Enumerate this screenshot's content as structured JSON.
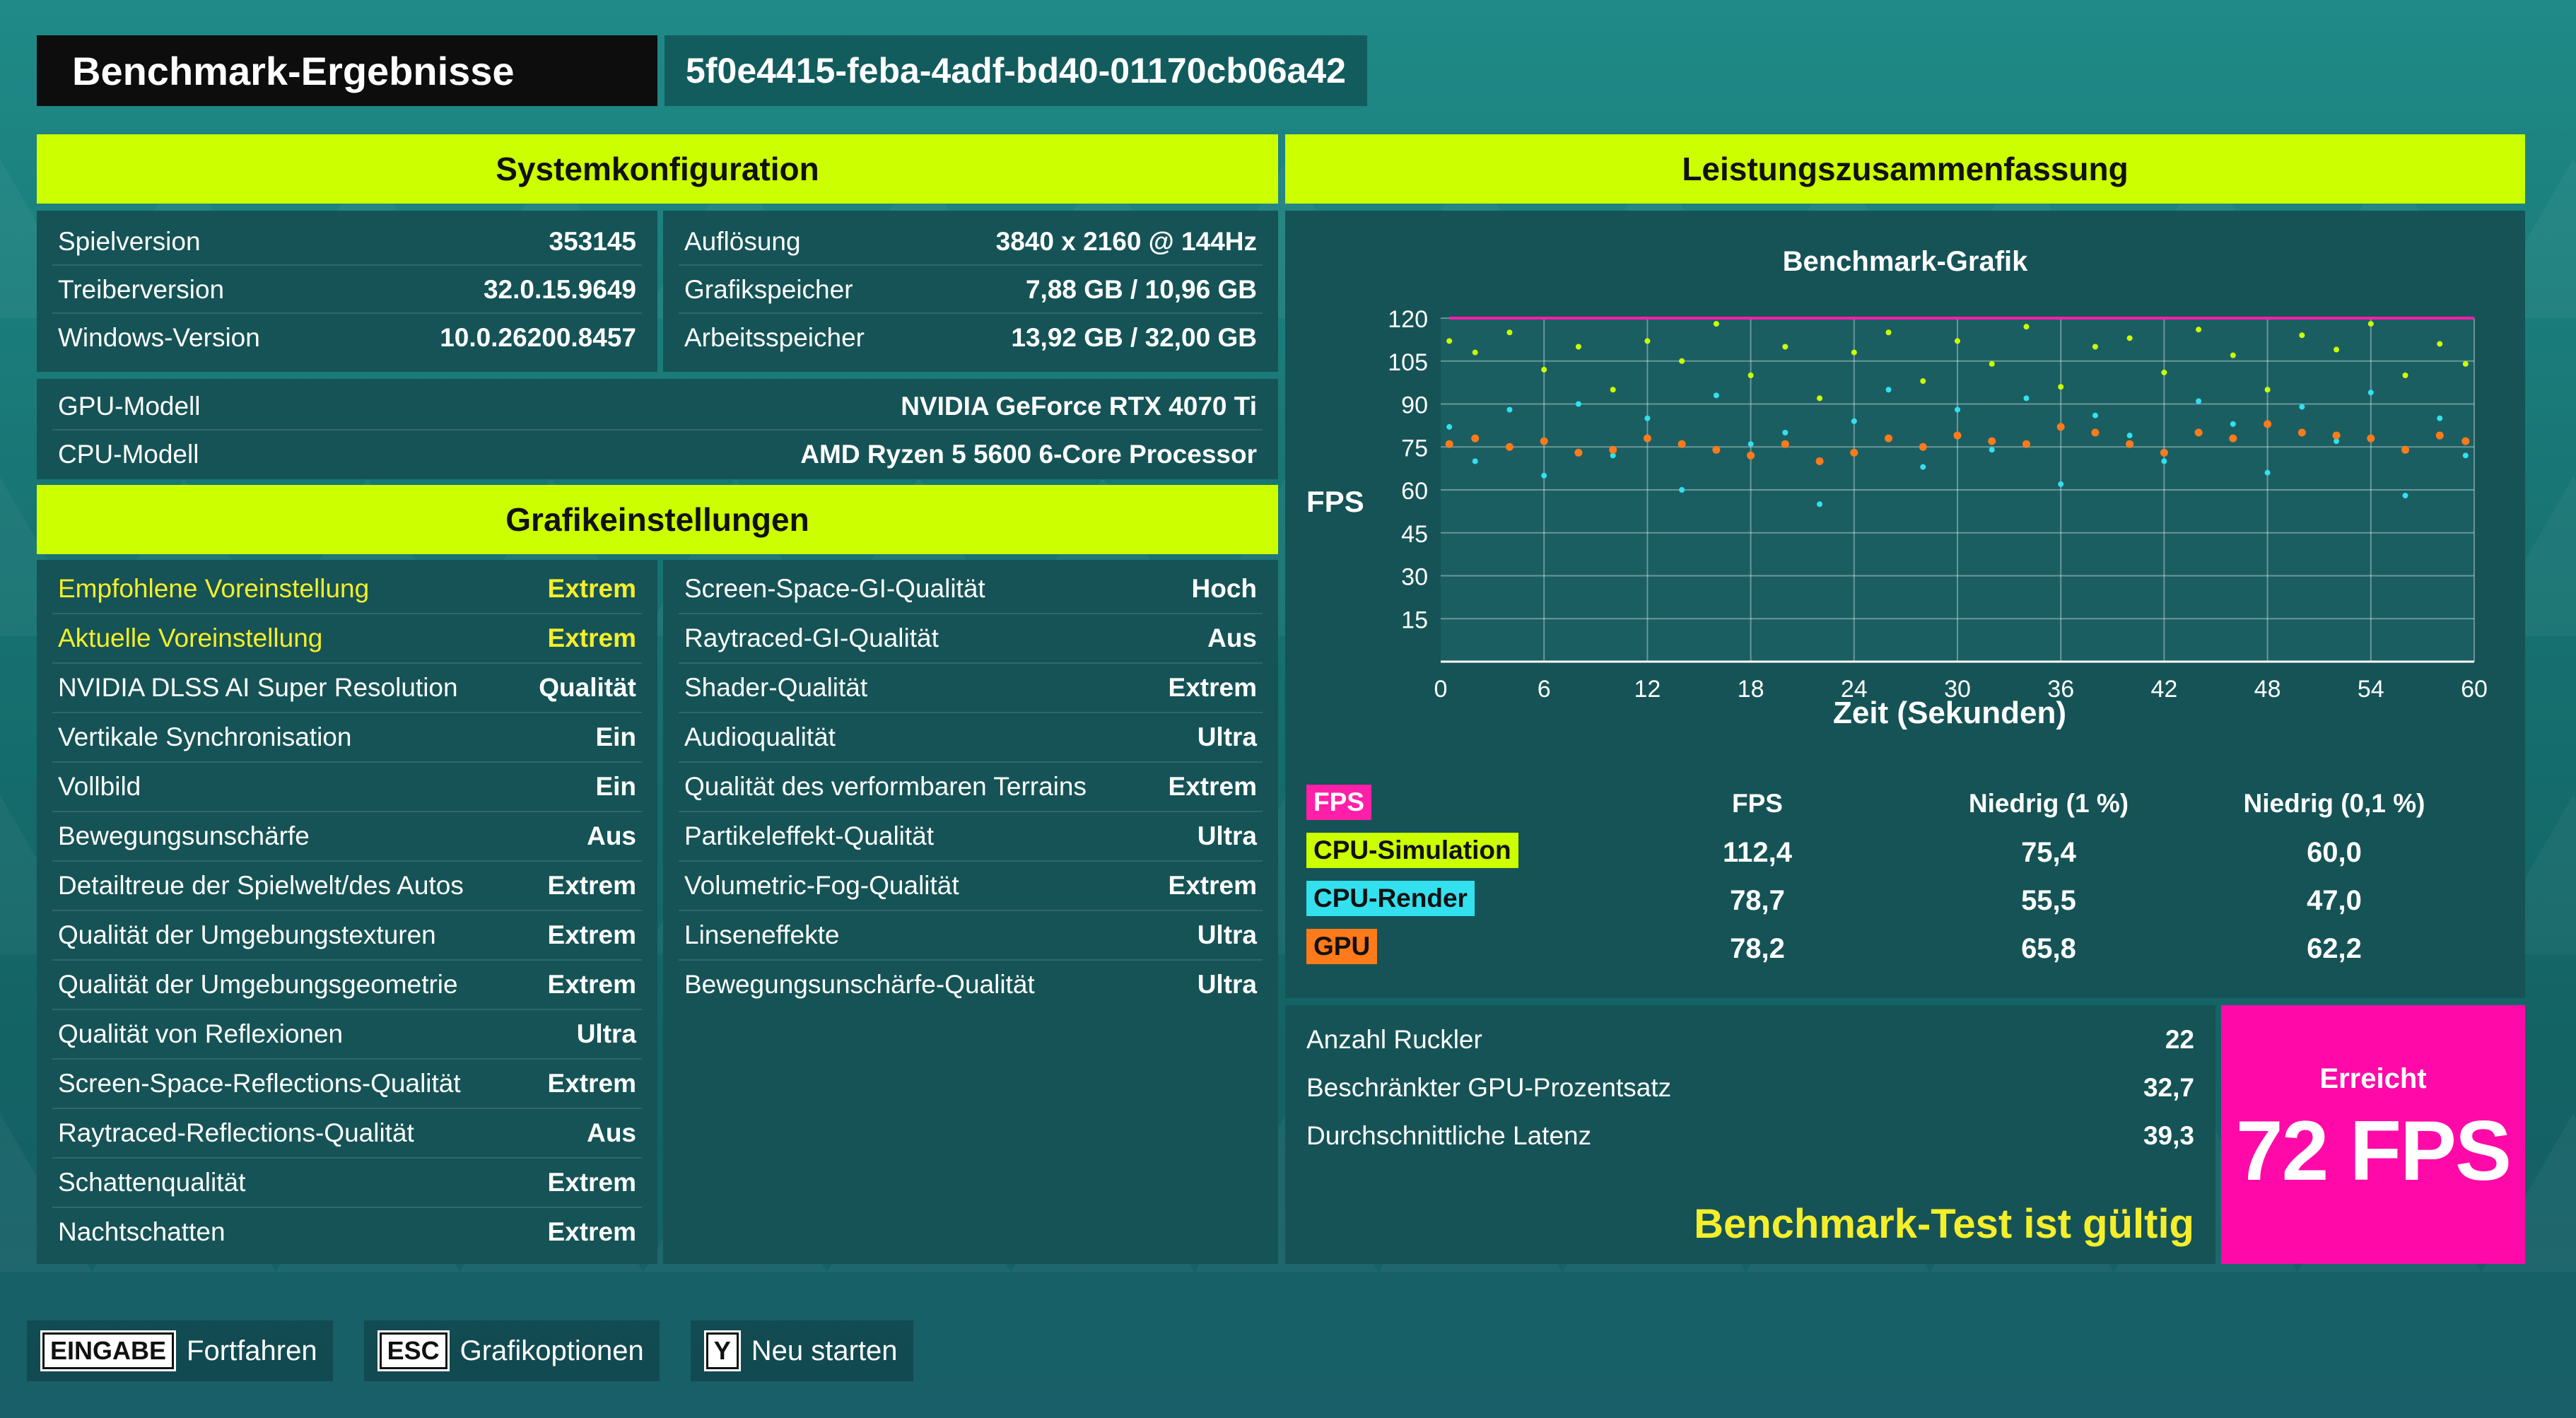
{
  "header": {
    "title": "Benchmark-Ergebnisse",
    "run_id": "5f0e4415-feba-4adf-bd40-01170cb06a42"
  },
  "system": {
    "heading": "Systemkonfiguration",
    "left": [
      {
        "label": "Spielversion",
        "value": "353145"
      },
      {
        "label": "Treiberversion",
        "value": "32.0.15.9649"
      },
      {
        "label": "Windows-Version",
        "value": "10.0.26200.8457"
      }
    ],
    "right": [
      {
        "label": "Auflösung",
        "value": "3840 x 2160 @ 144Hz"
      },
      {
        "label": "Grafikspeicher",
        "value": "7,88 GB / 10,96 GB"
      },
      {
        "label": "Arbeitsspeicher",
        "value": "13,92 GB / 32,00 GB"
      }
    ],
    "hardware": [
      {
        "label": "GPU-Modell",
        "value": "NVIDIA GeForce RTX 4070 Ti"
      },
      {
        "label": "CPU-Modell",
        "value": "AMD Ryzen 5 5600 6-Core Processor"
      }
    ]
  },
  "graphics": {
    "heading": "Grafikeinstellungen",
    "left": [
      {
        "label": "Empfohlene Voreinstellung",
        "value": "Extrem"
      },
      {
        "label": "Aktuelle Voreinstellung",
        "value": "Extrem"
      },
      {
        "label": "NVIDIA DLSS AI Super Resolution",
        "value": "Qualität"
      },
      {
        "label": "Vertikale Synchronisation",
        "value": "Ein"
      },
      {
        "label": "Vollbild",
        "value": "Ein"
      },
      {
        "label": "Bewegungsunschärfe",
        "value": "Aus"
      },
      {
        "label": "Detailtreue der Spielwelt/des Autos",
        "value": "Extrem"
      },
      {
        "label": "Qualität der Umgebungstexturen",
        "value": "Extrem"
      },
      {
        "label": "Qualität der Umgebungsgeometrie",
        "value": "Extrem"
      },
      {
        "label": "Qualität von Reflexionen",
        "value": "Ultra"
      },
      {
        "label": "Screen-Space-Reflections-Qualität",
        "value": "Extrem"
      },
      {
        "label": "Raytraced-Reflections-Qualität",
        "value": "Aus"
      },
      {
        "label": "Schattenqualität",
        "value": "Extrem"
      },
      {
        "label": "Nachtschatten",
        "value": "Extrem"
      }
    ],
    "right": [
      {
        "label": "Screen-Space-GI-Qualität",
        "value": "Hoch"
      },
      {
        "label": "Raytraced-GI-Qualität",
        "value": "Aus"
      },
      {
        "label": "Shader-Qualität",
        "value": "Extrem"
      },
      {
        "label": "Audioqualität",
        "value": "Ultra"
      },
      {
        "label": "Qualität des verformbaren Terrains",
        "value": "Extrem"
      },
      {
        "label": "Partikeleffekt-Qualität",
        "value": "Ultra"
      },
      {
        "label": "Volumetric-Fog-Qualität",
        "value": "Extrem"
      },
      {
        "label": "Linseneffekte",
        "value": "Ultra"
      },
      {
        "label": "Bewegungsunschärfe-Qualität",
        "value": "Ultra"
      }
    ]
  },
  "performance": {
    "heading": "Leistungszusammenfassung",
    "chart_title": "Benchmark-Grafik",
    "ylabel": "FPS",
    "xlabel": "Zeit (Sekunden)",
    "columns": [
      "FPS",
      "Niedrig (1 %)",
      "Niedrig (0,1 %)"
    ],
    "rows": [
      {
        "name": "CPU-Simulation",
        "color": "#ccff00",
        "values": [
          "112,4",
          "75,4",
          "60,0"
        ]
      },
      {
        "name": "CPU-Render",
        "color": "#33e0ee",
        "values": [
          "78,7",
          "55,5",
          "47,0"
        ]
      },
      {
        "name": "GPU",
        "color": "#ff7a1a",
        "values": [
          "78,2",
          "65,8",
          "62,2"
        ]
      }
    ],
    "fps_tag": {
      "name": "FPS",
      "color": "#ff1fa8"
    }
  },
  "chart_data": {
    "type": "scatter",
    "title": "Benchmark-Grafik",
    "xlabel": "Zeit (Sekunden)",
    "ylabel": "FPS",
    "xlim": [
      0,
      60
    ],
    "ylim": [
      0,
      120
    ],
    "xticks": [
      0,
      6,
      12,
      18,
      24,
      30,
      36,
      42,
      48,
      54,
      60
    ],
    "yticks": [
      15,
      30,
      45,
      60,
      75,
      90,
      105,
      120
    ],
    "grid": true,
    "series": [
      {
        "name": "FPS",
        "color": "#ff1fa8",
        "points": [
          [
            0.5,
            120
          ],
          [
            10,
            120
          ],
          [
            20,
            120
          ],
          [
            30,
            120
          ],
          [
            40,
            120
          ],
          [
            50,
            120
          ],
          [
            60,
            120
          ]
        ]
      },
      {
        "name": "CPU-Simulation",
        "color": "#ccff00",
        "points": [
          [
            0.5,
            112
          ],
          [
            2,
            108
          ],
          [
            4,
            115
          ],
          [
            6,
            102
          ],
          [
            8,
            110
          ],
          [
            10,
            95
          ],
          [
            12,
            112
          ],
          [
            14,
            105
          ],
          [
            16,
            118
          ],
          [
            18,
            100
          ],
          [
            20,
            110
          ],
          [
            22,
            92
          ],
          [
            24,
            108
          ],
          [
            26,
            115
          ],
          [
            28,
            98
          ],
          [
            30,
            112
          ],
          [
            32,
            104
          ],
          [
            34,
            117
          ],
          [
            36,
            96
          ],
          [
            38,
            110
          ],
          [
            40,
            113
          ],
          [
            42,
            101
          ],
          [
            44,
            116
          ],
          [
            46,
            107
          ],
          [
            48,
            95
          ],
          [
            50,
            114
          ],
          [
            52,
            109
          ],
          [
            54,
            118
          ],
          [
            56,
            100
          ],
          [
            58,
            111
          ],
          [
            59.5,
            104
          ]
        ]
      },
      {
        "name": "CPU-Render",
        "color": "#33e0ee",
        "points": [
          [
            0.5,
            82
          ],
          [
            2,
            70
          ],
          [
            4,
            88
          ],
          [
            6,
            65
          ],
          [
            8,
            90
          ],
          [
            10,
            72
          ],
          [
            12,
            85
          ],
          [
            14,
            60
          ],
          [
            16,
            93
          ],
          [
            18,
            76
          ],
          [
            20,
            80
          ],
          [
            22,
            55
          ],
          [
            24,
            84
          ],
          [
            26,
            95
          ],
          [
            28,
            68
          ],
          [
            30,
            88
          ],
          [
            32,
            74
          ],
          [
            34,
            92
          ],
          [
            36,
            62
          ],
          [
            38,
            86
          ],
          [
            40,
            79
          ],
          [
            42,
            70
          ],
          [
            44,
            91
          ],
          [
            46,
            83
          ],
          [
            48,
            66
          ],
          [
            50,
            89
          ],
          [
            52,
            77
          ],
          [
            54,
            94
          ],
          [
            56,
            58
          ],
          [
            58,
            85
          ],
          [
            59.5,
            72
          ]
        ]
      },
      {
        "name": "GPU",
        "color": "#ff7a1a",
        "points": [
          [
            0.5,
            76
          ],
          [
            2,
            78
          ],
          [
            4,
            75
          ],
          [
            6,
            77
          ],
          [
            8,
            73
          ],
          [
            10,
            74
          ],
          [
            12,
            78
          ],
          [
            14,
            76
          ],
          [
            16,
            74
          ],
          [
            18,
            72
          ],
          [
            20,
            76
          ],
          [
            22,
            70
          ],
          [
            24,
            73
          ],
          [
            26,
            78
          ],
          [
            28,
            75
          ],
          [
            30,
            79
          ],
          [
            32,
            77
          ],
          [
            34,
            76
          ],
          [
            36,
            82
          ],
          [
            38,
            80
          ],
          [
            40,
            76
          ],
          [
            42,
            73
          ],
          [
            44,
            80
          ],
          [
            46,
            78
          ],
          [
            48,
            83
          ],
          [
            50,
            80
          ],
          [
            52,
            79
          ],
          [
            54,
            78
          ],
          [
            56,
            74
          ],
          [
            58,
            79
          ],
          [
            59.5,
            77
          ]
        ]
      }
    ]
  },
  "stats": [
    {
      "label": "Anzahl Ruckler",
      "value": "22"
    },
    {
      "label": "Beschränkter GPU-Prozentsatz",
      "value": "32,7"
    },
    {
      "label": "Durchschnittliche Latenz",
      "value": "39,3"
    }
  ],
  "valid_text": "Benchmark-Test ist gültig",
  "result": {
    "label": "Erreicht",
    "value": "72 FPS",
    "color": "#ff0aa8"
  },
  "footer": [
    {
      "key": "EINGABE",
      "label": "Fortfahren"
    },
    {
      "key": "ESC",
      "label": "Grafikoptionen"
    },
    {
      "key": "Y",
      "label": "Neu starten"
    }
  ]
}
